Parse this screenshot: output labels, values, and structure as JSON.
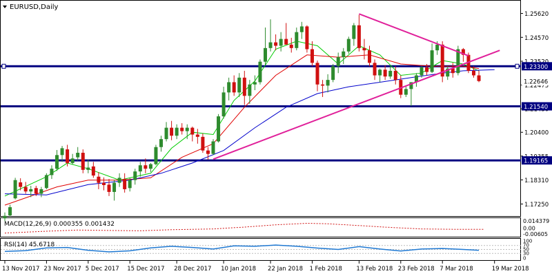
{
  "chart_data": {
    "type": "candlestick",
    "title": "EURUSD,Daily",
    "symbol_icon": "chevron-down-icon",
    "price_axis": {
      "ylim": [
        1.1675,
        1.2615
      ],
      "ticks": [
        "1.25620",
        "1.24570",
        "1.23520",
        "1.22475",
        "1.21430",
        "1.20400",
        "1.19355",
        "1.18310",
        "1.17250"
      ]
    },
    "date_labels": [
      "13 Nov 2017",
      "23 Nov 2017",
      "5 Dec 2017",
      "15 Dec 2017",
      "28 Dec 2017",
      "10 Jan 2018",
      "22 Jan 2018",
      "1 Feb 2018",
      "13 Feb 2018",
      "23 Feb 2018",
      "7 Mar 2018",
      "19 Mar 2018"
    ],
    "date_label_bars": [
      0,
      8,
      16,
      24,
      33,
      42,
      51,
      59,
      68,
      76,
      84,
      94
    ],
    "horizontal_levels": [
      {
        "label": "1.23300",
        "value": 1.233
      },
      {
        "label": "1.21540",
        "value": 1.2154
      },
      {
        "label": "1.19165",
        "value": 1.19165
      }
    ],
    "current_price_label": "1.22646",
    "current_price": 1.22646,
    "trendlines": [
      {
        "name": "resistance",
        "from": [
          68,
          1.256
        ],
        "to": [
          89,
          1.2376
        ]
      },
      {
        "name": "support",
        "from": [
          40,
          1.1922
        ],
        "to": [
          95,
          1.24
        ]
      }
    ],
    "ohlc": [
      [
        1.1662,
        1.1688,
        1.165,
        1.1673
      ],
      [
        1.1675,
        1.1722,
        1.167,
        1.1711
      ],
      [
        1.175,
        1.184,
        1.1745,
        1.183
      ],
      [
        1.182,
        1.1838,
        1.1785,
        1.18
      ],
      [
        1.18,
        1.1822,
        1.177,
        1.178
      ],
      [
        1.178,
        1.1805,
        1.1755,
        1.179
      ],
      [
        1.1795,
        1.1805,
        1.176,
        1.177
      ],
      [
        1.177,
        1.18,
        1.1755,
        1.179
      ],
      [
        1.1795,
        1.186,
        1.179,
        1.1852
      ],
      [
        1.1852,
        1.1895,
        1.1835,
        1.188
      ],
      [
        1.188,
        1.1962,
        1.187,
        1.194
      ],
      [
        1.194,
        1.198,
        1.191,
        1.197
      ],
      [
        1.1965,
        1.1985,
        1.189,
        1.1905
      ],
      [
        1.1905,
        1.1945,
        1.19,
        1.1925
      ],
      [
        1.193,
        1.1975,
        1.1915,
        1.195
      ],
      [
        1.195,
        1.1965,
        1.186,
        1.1875
      ],
      [
        1.1875,
        1.192,
        1.186,
        1.1885
      ],
      [
        1.189,
        1.191,
        1.184,
        1.185
      ],
      [
        1.1845,
        1.1865,
        1.179,
        1.1818
      ],
      [
        1.1818,
        1.1842,
        1.1785,
        1.1808
      ],
      [
        1.181,
        1.1835,
        1.176,
        1.1778
      ],
      [
        1.1778,
        1.183,
        1.174,
        1.1818
      ],
      [
        1.1818,
        1.186,
        1.18,
        1.184
      ],
      [
        1.1835,
        1.186,
        1.1775,
        1.179
      ],
      [
        1.1795,
        1.184,
        1.178,
        1.183
      ],
      [
        1.183,
        1.188,
        1.181,
        1.1868
      ],
      [
        1.1868,
        1.191,
        1.1845,
        1.1895
      ],
      [
        1.1895,
        1.1925,
        1.186,
        1.188
      ],
      [
        1.188,
        1.1905,
        1.1865,
        1.19
      ],
      [
        1.19,
        1.1985,
        1.1895,
        1.1975
      ],
      [
        1.1975,
        1.2025,
        1.1955,
        1.201
      ],
      [
        1.201,
        1.2085,
        1.2,
        1.206
      ],
      [
        1.206,
        1.209,
        1.2005,
        1.2025
      ],
      [
        1.2025,
        1.2075,
        1.201,
        1.206
      ],
      [
        1.206,
        1.208,
        1.203,
        1.2045
      ],
      [
        1.2045,
        1.2075,
        1.201,
        1.206
      ],
      [
        1.206,
        1.2065,
        1.2,
        1.203
      ],
      [
        1.203,
        1.2055,
        1.199,
        1.202
      ],
      [
        1.202,
        1.2035,
        1.195,
        1.196
      ],
      [
        1.196,
        1.1975,
        1.192,
        1.1945
      ],
      [
        1.1945,
        1.201,
        1.194,
        1.2
      ],
      [
        1.2,
        1.212,
        1.1995,
        1.211
      ],
      [
        1.211,
        1.224,
        1.21,
        1.2215
      ],
      [
        1.2215,
        1.228,
        1.218,
        1.226
      ],
      [
        1.226,
        1.229,
        1.22,
        1.2215
      ],
      [
        1.2215,
        1.23,
        1.2195,
        1.228
      ],
      [
        1.228,
        1.231,
        1.216,
        1.22
      ],
      [
        1.22,
        1.227,
        1.2165,
        1.225
      ],
      [
        1.225,
        1.229,
        1.2225,
        1.226
      ],
      [
        1.226,
        1.236,
        1.225,
        1.235
      ],
      [
        1.235,
        1.25,
        1.2335,
        1.241
      ],
      [
        1.241,
        1.2536,
        1.2395,
        1.2435
      ],
      [
        1.2435,
        1.247,
        1.24,
        1.242
      ],
      [
        1.242,
        1.248,
        1.2395,
        1.245
      ],
      [
        1.245,
        1.252,
        1.243,
        1.2425
      ],
      [
        1.2425,
        1.2455,
        1.239,
        1.241
      ],
      [
        1.241,
        1.25,
        1.24,
        1.248
      ],
      [
        1.248,
        1.2525,
        1.245,
        1.2505
      ],
      [
        1.2505,
        1.251,
        1.239,
        1.2405
      ],
      [
        1.2405,
        1.244,
        1.233,
        1.2345
      ],
      [
        1.2345,
        1.2355,
        1.222,
        1.225
      ],
      [
        1.225,
        1.227,
        1.2195,
        1.2245
      ],
      [
        1.2245,
        1.2295,
        1.2215,
        1.227
      ],
      [
        1.227,
        1.234,
        1.226,
        1.233
      ],
      [
        1.233,
        1.239,
        1.23,
        1.237
      ],
      [
        1.237,
        1.241,
        1.234,
        1.2395
      ],
      [
        1.2395,
        1.246,
        1.2385,
        1.245
      ],
      [
        1.245,
        1.252,
        1.242,
        1.251
      ],
      [
        1.251,
        1.2556,
        1.2395,
        1.241
      ],
      [
        1.241,
        1.245,
        1.236,
        1.24
      ],
      [
        1.24,
        1.242,
        1.233,
        1.2345
      ],
      [
        1.2345,
        1.236,
        1.227,
        1.229
      ],
      [
        1.229,
        1.232,
        1.226,
        1.2315
      ],
      [
        1.2315,
        1.2335,
        1.227,
        1.2285
      ],
      [
        1.2285,
        1.233,
        1.2275,
        1.231
      ],
      [
        1.231,
        1.233,
        1.225,
        1.227
      ],
      [
        1.227,
        1.229,
        1.219,
        1.2205
      ],
      [
        1.2205,
        1.2245,
        1.2195,
        1.223
      ],
      [
        1.223,
        1.226,
        1.2155,
        1.226
      ],
      [
        1.226,
        1.23,
        1.224,
        1.229
      ],
      [
        1.229,
        1.233,
        1.228,
        1.2325
      ],
      [
        1.2325,
        1.234,
        1.229,
        1.2305
      ],
      [
        1.2305,
        1.243,
        1.23,
        1.24
      ],
      [
        1.24,
        1.244,
        1.238,
        1.2425
      ],
      [
        1.2425,
        1.244,
        1.226,
        1.2285
      ],
      [
        1.2285,
        1.233,
        1.227,
        1.232
      ],
      [
        1.232,
        1.2345,
        1.228,
        1.23
      ],
      [
        1.23,
        1.242,
        1.229,
        1.2405
      ],
      [
        1.2405,
        1.241,
        1.235,
        1.238
      ],
      [
        1.238,
        1.239,
        1.23,
        1.231
      ],
      [
        1.231,
        1.233,
        1.228,
        1.229
      ],
      [
        1.229,
        1.231,
        1.226,
        1.2265
      ]
    ],
    "ma_series": [
      {
        "name": "ma-fast",
        "color": "#00cc00",
        "points": [
          [
            0,
            1.176
          ],
          [
            8,
            1.1845
          ],
          [
            12,
            1.1905
          ],
          [
            16,
            1.188
          ],
          [
            22,
            1.183
          ],
          [
            28,
            1.186
          ],
          [
            32,
            1.197
          ],
          [
            36,
            1.204
          ],
          [
            40,
            1.203
          ],
          [
            44,
            1.218
          ],
          [
            48,
            1.2265
          ],
          [
            52,
            1.2405
          ],
          [
            56,
            1.244
          ],
          [
            60,
            1.242
          ],
          [
            64,
            1.234
          ],
          [
            68,
            1.242
          ],
          [
            72,
            1.238
          ],
          [
            76,
            1.229
          ],
          [
            80,
            1.23
          ],
          [
            84,
            1.2355
          ],
          [
            88,
            1.234
          ],
          [
            91,
            1.231
          ]
        ]
      },
      {
        "name": "ma-mid",
        "color": "#e00000",
        "points": [
          [
            0,
            1.172
          ],
          [
            10,
            1.18
          ],
          [
            16,
            1.183
          ],
          [
            22,
            1.183
          ],
          [
            28,
            1.184
          ],
          [
            34,
            1.193
          ],
          [
            40,
            1.199
          ],
          [
            46,
            1.215
          ],
          [
            52,
            1.229
          ],
          [
            58,
            1.238
          ],
          [
            64,
            1.237
          ],
          [
            70,
            1.238
          ],
          [
            76,
            1.234
          ],
          [
            82,
            1.233
          ],
          [
            88,
            1.233
          ],
          [
            91,
            1.232
          ]
        ]
      },
      {
        "name": "ma-slow",
        "color": "#0000cc",
        "points": [
          [
            0,
            1.177
          ],
          [
            8,
            1.1765
          ],
          [
            16,
            1.181
          ],
          [
            24,
            1.183
          ],
          [
            30,
            1.186
          ],
          [
            36,
            1.1905
          ],
          [
            42,
            1.196
          ],
          [
            48,
            1.206
          ],
          [
            54,
            1.215
          ],
          [
            60,
            1.221
          ],
          [
            66,
            1.224
          ],
          [
            72,
            1.226
          ],
          [
            78,
            1.228
          ],
          [
            84,
            1.23
          ],
          [
            88,
            1.231
          ],
          [
            94,
            1.2315
          ]
        ]
      }
    ],
    "macd": {
      "label": "MACD(12,26,9) 0.000355 0.001432",
      "axis_ticks": [
        "0.014379",
        "0.00",
        "-0.00605"
      ],
      "ylim": [
        -0.0065,
        0.0145
      ],
      "signal_points": [
        [
          0,
          -0.0035
        ],
        [
          8,
          -0.001
        ],
        [
          14,
          0.0005
        ],
        [
          20,
          0.0
        ],
        [
          26,
          -0.0005
        ],
        [
          32,
          0.001
        ],
        [
          40,
          0.002
        ],
        [
          46,
          0.0045
        ],
        [
          52,
          0.0075
        ],
        [
          58,
          0.0095
        ],
        [
          62,
          0.0088
        ],
        [
          68,
          0.0065
        ],
        [
          74,
          0.004
        ],
        [
          80,
          0.002
        ],
        [
          86,
          0.0015
        ],
        [
          92,
          0.0014
        ]
      ]
    },
    "rsi": {
      "label": "RSI(14) 45.6718",
      "axis_ticks": [
        "100",
        "70",
        "50",
        "30",
        "0"
      ],
      "ylim": [
        0,
        100
      ],
      "points": [
        [
          0,
          40
        ],
        [
          4,
          44
        ],
        [
          8,
          58
        ],
        [
          12,
          60
        ],
        [
          16,
          46
        ],
        [
          20,
          38
        ],
        [
          24,
          43
        ],
        [
          28,
          58
        ],
        [
          32,
          66
        ],
        [
          36,
          60
        ],
        [
          40,
          52
        ],
        [
          44,
          68
        ],
        [
          48,
          66
        ],
        [
          52,
          72
        ],
        [
          56,
          66
        ],
        [
          60,
          57
        ],
        [
          64,
          50
        ],
        [
          68,
          64
        ],
        [
          72,
          52
        ],
        [
          76,
          42
        ],
        [
          80,
          52
        ],
        [
          84,
          55
        ],
        [
          88,
          50
        ],
        [
          91,
          45.67
        ]
      ]
    }
  }
}
